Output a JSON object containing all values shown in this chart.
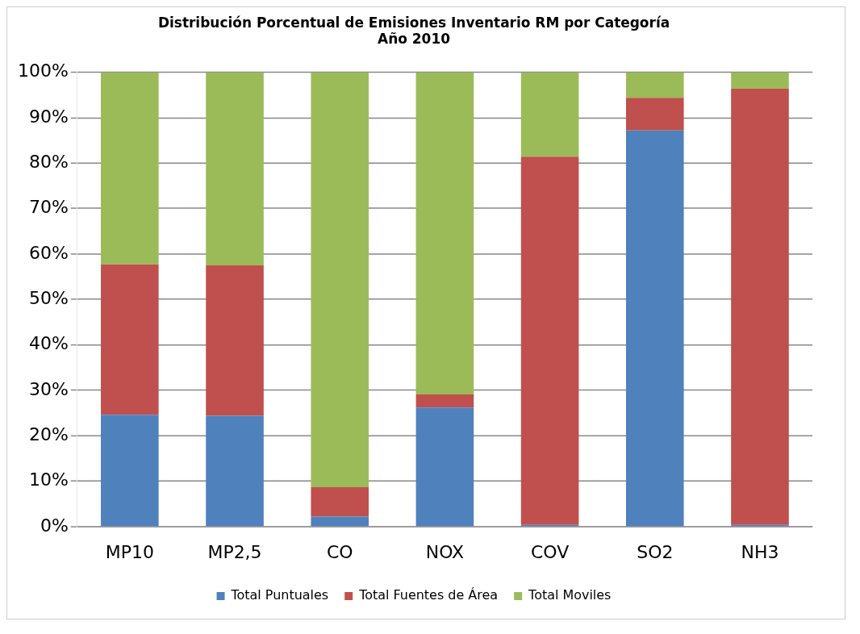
{
  "chart_data": {
    "type": "bar",
    "title": "Distribución Porcentual de Emisiones Inventario RM por Categoría\nAño 2010",
    "categories": [
      "MP10",
      "MP2,5",
      "CO",
      "NOX",
      "COV",
      "SO2",
      "NH3"
    ],
    "stacked": true,
    "series": [
      {
        "name": "Total Puntuales",
        "color": "#4f81bd",
        "values": [
          24.6,
          24.4,
          2.2,
          26.2,
          0.4,
          87.2,
          0.4
        ]
      },
      {
        "name": "Total Fuentes de Área",
        "color": "#c0504d",
        "values": [
          33.1,
          33.1,
          6.5,
          2.9,
          81.0,
          7.2,
          96.0
        ]
      },
      {
        "name": "Total Moviles",
        "color": "#9bbb59",
        "values": [
          42.3,
          42.5,
          91.3,
          70.9,
          18.6,
          5.6,
          3.6
        ]
      }
    ],
    "ylim": [
      0,
      100
    ],
    "yticks": [
      {
        "value": 0,
        "label": "0%"
      },
      {
        "value": 10,
        "label": "10%"
      },
      {
        "value": 20,
        "label": "20%"
      },
      {
        "value": 30,
        "label": "30%"
      },
      {
        "value": 40,
        "label": "40%"
      },
      {
        "value": 50,
        "label": "50%"
      },
      {
        "value": 60,
        "label": "60%"
      },
      {
        "value": 70,
        "label": "70%"
      },
      {
        "value": 80,
        "label": "80%"
      },
      {
        "value": 90,
        "label": "90%"
      },
      {
        "value": 100,
        "label": "100%"
      }
    ],
    "grid": "y",
    "legend": "bottom"
  }
}
